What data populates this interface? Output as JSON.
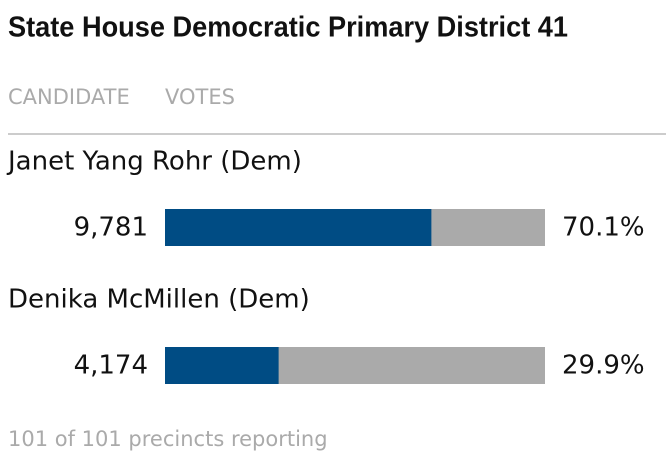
{
  "chart_data": {
    "type": "bar",
    "title": "State House Democratic Primary District 41",
    "columns": [
      "CANDIDATE",
      "VOTES"
    ],
    "categories": [
      "Janet Yang Rohr (Dem)",
      "Denika McMillen (Dem)"
    ],
    "votes": [
      "9,781",
      "4,174"
    ],
    "values": [
      70.1,
      29.9
    ],
    "value_labels": [
      "70.1%",
      "29.9%"
    ],
    "xlim": [
      0,
      100
    ],
    "color": "#004c84",
    "track_color": "#aaaaaa",
    "footnote": "101 of 101 precincts reporting"
  }
}
